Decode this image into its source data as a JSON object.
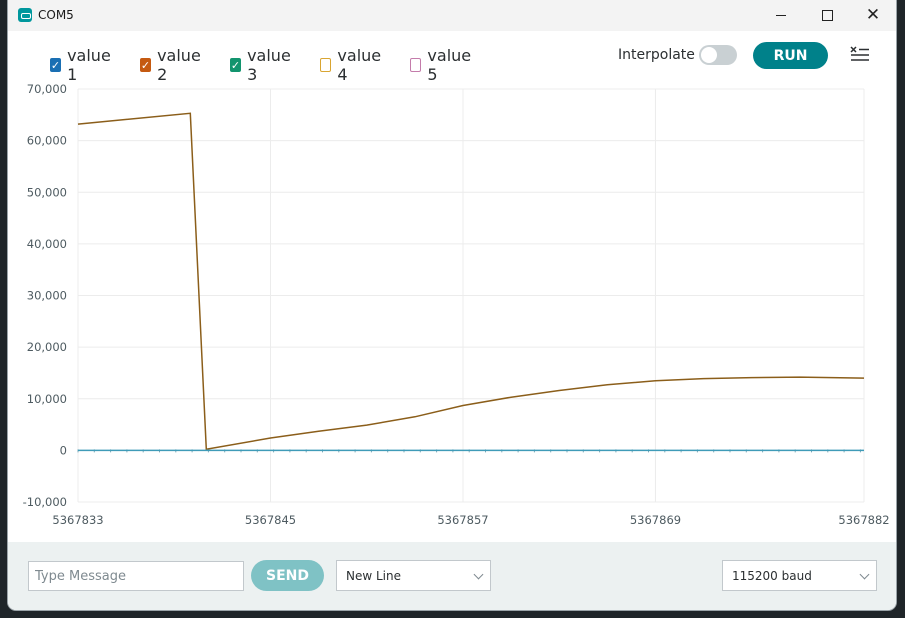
{
  "window": {
    "title": "COM5"
  },
  "legend": [
    {
      "label": "value 1",
      "checked": true,
      "color": "#1a6fb3"
    },
    {
      "label": "value 2",
      "checked": true,
      "color": "#c55a11"
    },
    {
      "label": "value 3",
      "checked": true,
      "color": "#12946e"
    },
    {
      "label": "value 4",
      "checked": false,
      "color": "#d9a532"
    },
    {
      "label": "value 5",
      "checked": false,
      "color": "#c47cab"
    }
  ],
  "toolbar": {
    "interpolate_label": "Interpolate",
    "interpolate_on": false,
    "run_label": "RUN",
    "clear_icon": "clear-list-icon"
  },
  "footer": {
    "message_placeholder": "Type Message",
    "send_label": "SEND",
    "line_ending": "New Line",
    "baud": "115200 baud"
  },
  "chart_data": {
    "type": "line",
    "xlim": [
      5367833,
      5367882
    ],
    "ylim": [
      -10000,
      70000
    ],
    "x_ticks": [
      5367833,
      5367845,
      5367857,
      5367869,
      5367882
    ],
    "y_ticks": [
      -10000,
      0,
      10000,
      20000,
      30000,
      40000,
      50000,
      60000,
      70000
    ],
    "x_tick_labels": [
      "5367833",
      "5367845",
      "5367857",
      "5367869",
      "5367882"
    ],
    "y_tick_labels": [
      "-10,000",
      "0",
      "10,000",
      "20,000",
      "30,000",
      "40,000",
      "50,000",
      "60,000",
      "70,000"
    ],
    "grid": true,
    "series": [
      {
        "color": "#8b5e1a",
        "points": [
          [
            5367833,
            63200
          ],
          [
            5367840,
            65300
          ],
          [
            5367841,
            200
          ],
          [
            5367845,
            2400
          ],
          [
            5367848,
            3700
          ],
          [
            5367851,
            4900
          ],
          [
            5367854,
            6500
          ],
          [
            5367857,
            8700
          ],
          [
            5367860,
            10300
          ],
          [
            5367863,
            11600
          ],
          [
            5367866,
            12700
          ],
          [
            5367869,
            13500
          ],
          [
            5367872,
            13900
          ],
          [
            5367875,
            14100
          ],
          [
            5367878,
            14200
          ],
          [
            5367882,
            14000
          ]
        ]
      },
      {
        "color": "#3f9bb8",
        "points": [
          [
            5367833,
            0
          ],
          [
            5367882,
            0
          ]
        ]
      }
    ]
  }
}
